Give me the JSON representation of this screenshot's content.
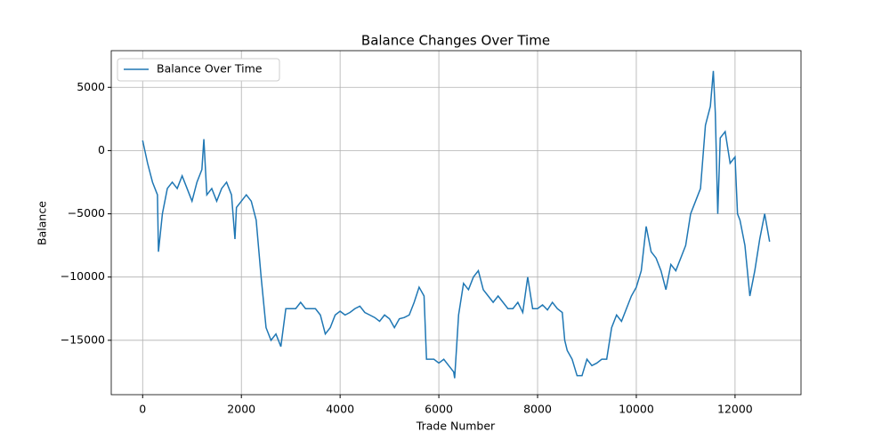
{
  "chart_data": {
    "type": "line",
    "title": "Balance Changes Over Time",
    "x_label": "Trade Number",
    "y_label": "Balance",
    "legend": "upper left",
    "grid": true,
    "x": [
      0,
      100,
      200,
      300,
      320,
      400,
      500,
      600,
      700,
      800,
      900,
      1000,
      1100,
      1200,
      1240,
      1300,
      1400,
      1500,
      1600,
      1700,
      1800,
      1870,
      1900,
      2000,
      2100,
      2200,
      2300,
      2400,
      2500,
      2600,
      2700,
      2800,
      2900,
      3000,
      3100,
      3200,
      3300,
      3400,
      3500,
      3600,
      3700,
      3800,
      3900,
      4000,
      4100,
      4200,
      4300,
      4400,
      4500,
      4600,
      4700,
      4800,
      4900,
      5000,
      5100,
      5200,
      5300,
      5400,
      5500,
      5600,
      5700,
      5750,
      5800,
      5900,
      6000,
      6100,
      6200,
      6300,
      6320,
      6400,
      6500,
      6600,
      6700,
      6800,
      6900,
      7000,
      7100,
      7200,
      7300,
      7400,
      7500,
      7600,
      7700,
      7800,
      7900,
      8000,
      8100,
      8200,
      8300,
      8400,
      8500,
      8550,
      8600,
      8700,
      8800,
      8900,
      9000,
      9100,
      9200,
      9300,
      9400,
      9500,
      9600,
      9700,
      9800,
      9900,
      10000,
      10100,
      10200,
      10300,
      10400,
      10500,
      10600,
      10700,
      10800,
      10900,
      11000,
      11100,
      11200,
      11300,
      11400,
      11500,
      11560,
      11600,
      11650,
      11700,
      11800,
      11900,
      12000,
      12050,
      12100,
      12200,
      12300,
      12400,
      12500,
      12600,
      12700
    ],
    "series": [
      {
        "name": "Balance Over Time",
        "color": "#1f77b4",
        "values": [
          800,
          -1000,
          -2500,
          -3500,
          -8000,
          -5000,
          -3000,
          -2500,
          -3000,
          -2000,
          -3000,
          -4000,
          -2500,
          -1500,
          900,
          -3500,
          -3000,
          -4000,
          -3000,
          -2500,
          -3500,
          -7000,
          -4500,
          -4000,
          -3500,
          -4000,
          -5500,
          -10000,
          -14000,
          -15000,
          -14500,
          -15500,
          -12500,
          -12500,
          -12500,
          -12000,
          -12500,
          -12500,
          -12500,
          -13000,
          -14500,
          -14000,
          -13000,
          -12700,
          -13000,
          -12800,
          -12500,
          -12300,
          -12800,
          -13000,
          -13200,
          -13500,
          -13000,
          -13300,
          -14000,
          -13300,
          -13200,
          -13000,
          -12000,
          -10800,
          -11500,
          -16500,
          -16500,
          -16500,
          -16800,
          -16500,
          -17000,
          -17500,
          -18000,
          -13000,
          -10500,
          -11000,
          -10000,
          -9500,
          -11000,
          -11500,
          -12000,
          -11500,
          -12000,
          -12500,
          -12500,
          -12000,
          -12800,
          -10000,
          -12500,
          -12500,
          -12200,
          -12600,
          -12000,
          -12500,
          -12800,
          -15000,
          -15800,
          -16500,
          -17800,
          -17800,
          -16500,
          -17000,
          -16800,
          -16500,
          -16500,
          -14000,
          -13000,
          -13500,
          -12500,
          -11500,
          -10800,
          -9500,
          -6000,
          -8000,
          -8500,
          -9500,
          -11000,
          -9000,
          -9500,
          -8500,
          -7500,
          -5000,
          -4000,
          -3000,
          2000,
          3500,
          6300,
          3000,
          -5000,
          1000,
          1500,
          -1000,
          -500,
          -5000,
          -5500,
          -7500,
          -11500,
          -9500,
          -7000,
          -5000,
          -7200
        ]
      }
    ],
    "xlim": [
      -636,
      13336
    ],
    "ylim": [
      -19300,
      7900
    ],
    "xticks": [
      0,
      2000,
      4000,
      6000,
      8000,
      10000,
      12000
    ],
    "yticks": [
      {
        "value": -15000,
        "label": "−15000"
      },
      {
        "value": -10000,
        "label": "−10000"
      },
      {
        "value": -5000,
        "label": "−5000"
      },
      0,
      5000
    ]
  }
}
